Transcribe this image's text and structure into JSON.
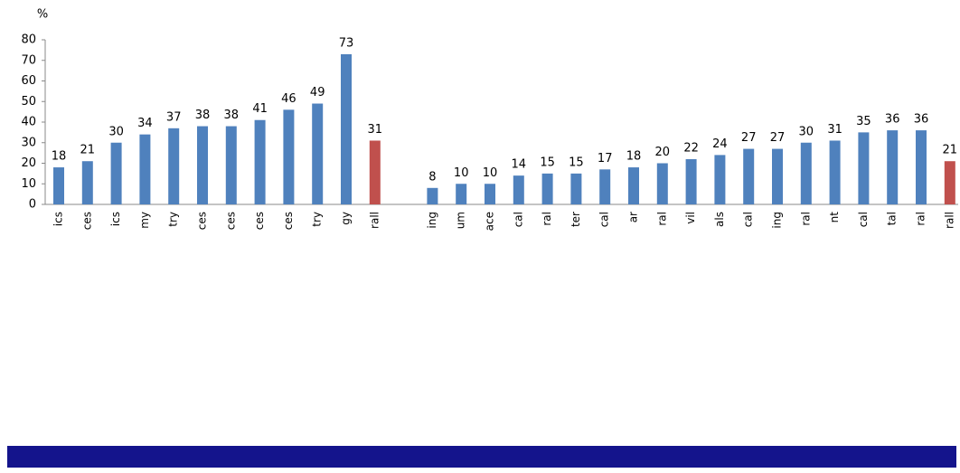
{
  "chart_data": {
    "type": "bar",
    "y_unit": "%",
    "categories": [
      "ics",
      "ces",
      "ics",
      "my",
      "try",
      "ces",
      "ces",
      "ces",
      "ces",
      "try",
      "gy",
      "rall",
      null,
      "ing",
      "um",
      "ace",
      "cal",
      "ral",
      "ter",
      "cal",
      "ar",
      "ral",
      "vil",
      "als",
      "cal",
      "ing",
      "ral",
      "nt",
      "cal",
      "tal",
      "ral",
      "rall"
    ],
    "values": [
      18,
      21,
      30,
      34,
      37,
      38,
      38,
      41,
      46,
      49,
      73,
      31,
      null,
      8,
      10,
      10,
      14,
      15,
      15,
      17,
      18,
      20,
      22,
      24,
      27,
      27,
      30,
      31,
      35,
      36,
      36,
      21
    ],
    "colors": [
      "#4f81bd",
      "#4f81bd",
      "#4f81bd",
      "#4f81bd",
      "#4f81bd",
      "#4f81bd",
      "#4f81bd",
      "#4f81bd",
      "#4f81bd",
      "#4f81bd",
      "#4f81bd",
      "#c0504d",
      null,
      "#4f81bd",
      "#4f81bd",
      "#4f81bd",
      "#4f81bd",
      "#4f81bd",
      "#4f81bd",
      "#4f81bd",
      "#4f81bd",
      "#4f81bd",
      "#4f81bd",
      "#4f81bd",
      "#4f81bd",
      "#4f81bd",
      "#4f81bd",
      "#4f81bd",
      "#4f81bd",
      "#4f81bd",
      "#4f81bd",
      "#c0504d"
    ],
    "ylim": [
      0,
      80
    ],
    "yticks": [
      0,
      10,
      20,
      30,
      40,
      50,
      60,
      70,
      80
    ],
    "grid": false
  }
}
